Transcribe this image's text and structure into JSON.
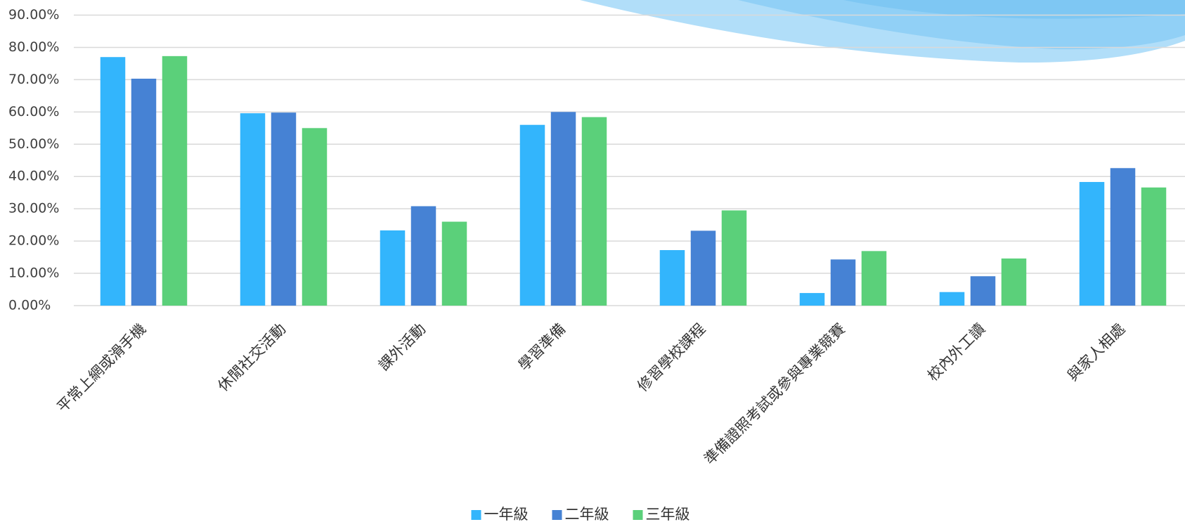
{
  "chart_data": {
    "type": "bar",
    "categories": [
      "平常上網或滑手機",
      "休閒社交活動",
      "課外活動",
      "學習準備",
      "修習學校課程",
      "準備證照考試或參與專業競賽",
      "校內外工讀",
      "與家人相處"
    ],
    "series": [
      {
        "name": "一年級",
        "color": "#33b5fc",
        "values": [
          77.0,
          59.6,
          23.3,
          56.0,
          17.2,
          3.9,
          4.2,
          38.3
        ]
      },
      {
        "name": "二年級",
        "color": "#4682d4",
        "values": [
          70.3,
          59.8,
          30.8,
          60.0,
          23.2,
          14.3,
          9.1,
          42.6
        ]
      },
      {
        "name": "三年級",
        "color": "#5bd07a",
        "values": [
          77.3,
          55.0,
          26.0,
          58.4,
          29.5,
          16.9,
          14.6,
          36.6
        ]
      }
    ],
    "ylim": [
      0,
      90
    ],
    "yticks": [
      {
        "value": 0,
        "label": "0.00%"
      },
      {
        "value": 10,
        "label": "10.00%"
      },
      {
        "value": 20,
        "label": "20.00%"
      },
      {
        "value": 30,
        "label": "30.00%"
      },
      {
        "value": 40,
        "label": "40.00%"
      },
      {
        "value": 50,
        "label": "50.00%"
      },
      {
        "value": 60,
        "label": "60.00%"
      },
      {
        "value": 70,
        "label": "70.00%"
      },
      {
        "value": 80,
        "label": "80.00%"
      },
      {
        "value": 90,
        "label": "90.00%"
      }
    ],
    "grid": true,
    "legend": "bottom"
  }
}
